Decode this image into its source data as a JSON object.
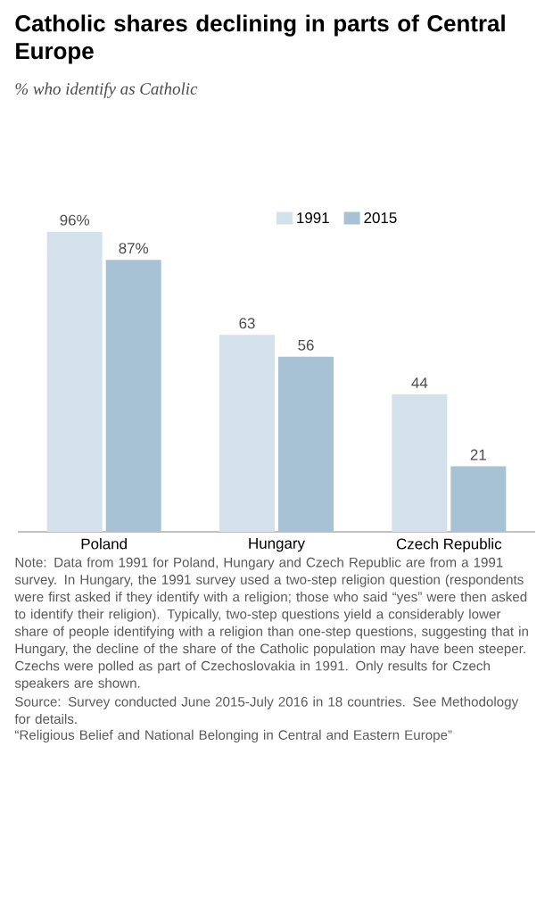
{
  "chart_data": {
    "type": "bar",
    "title": "Catholic shares declining in parts of Central Europe",
    "subtitle": "% who identify as Catholic",
    "categories": [
      "Poland",
      "Hungary",
      "Czech Republic"
    ],
    "series": [
      {
        "name": "1991",
        "color": "#d3e1eb",
        "values": [
          96,
          63,
          44
        ],
        "value_labels": [
          "96%",
          "63",
          "44"
        ]
      },
      {
        "name": "2015",
        "color": "#a7c1d5",
        "values": [
          87,
          56,
          21
        ],
        "value_labels": [
          "87%",
          "56",
          "21"
        ]
      }
    ],
    "legend": "top",
    "annotations": [
      "Note: Data from 1991 for Poland, Hungary and Czech Republic are from a 1991 survey. In Hungary, the 1991 survey used a two-step religion question (respondents were first asked if they identify with a religion; those who said “yes” were then asked to identify their religion). Typically, two-step questions yield a considerably lower share of people identifying with a religion than one-step questions, suggesting that in Hungary, the decline of the share of the Catholic population may have been steeper. Czechs were polled as part of Czechoslovakia in 1991. Only results for Czech speakers are shown.",
      "Source: Survey conducted June 2015-July 2016 in 18 countries. See Methodology for details.",
      "“Religious Belief and National Belonging in Central and Eastern Europe”"
    ]
  }
}
